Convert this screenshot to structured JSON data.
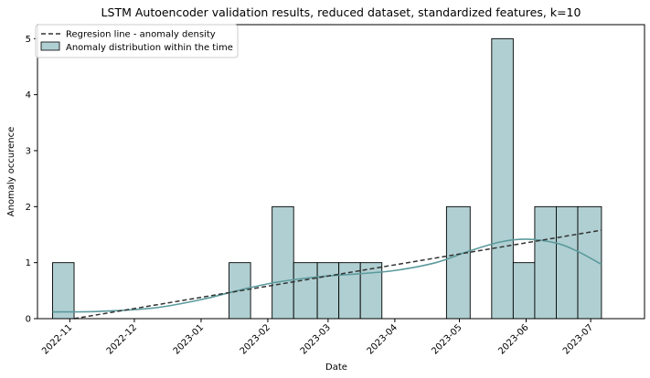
{
  "chart_data": {
    "type": "bar",
    "title": "LSTM Autoencoder validation results, reduced dataset, standardized features, k=10",
    "xlabel": "Date",
    "ylabel": "Anomaly occurence",
    "ylim": [
      0,
      5.25
    ],
    "yticks": [
      0,
      1,
      2,
      3,
      4,
      5
    ],
    "xlim": [
      "2022-10-17",
      "2023-07-26"
    ],
    "xticks": [
      "2022-11",
      "2022-12",
      "2023-01",
      "2023-02",
      "2023-03",
      "2023-04",
      "2023-05",
      "2023-06",
      "2023-07"
    ],
    "grid": false,
    "legend_position": "top-left",
    "legend": [
      "Regresion line - anomaly density",
      "Anomaly distribution within the time"
    ],
    "colors": {
      "bar_fill": "#b0cfd2",
      "bar_edge": "#000000",
      "kde_line": "#5b9a9c",
      "regression_line": "#333333"
    },
    "bins": [
      {
        "start": "2022-10-24",
        "end": "2022-11-03",
        "count": 1
      },
      {
        "start": "2022-11-03",
        "end": "2022-11-13",
        "count": 0
      },
      {
        "start": "2022-11-13",
        "end": "2022-11-24",
        "count": 0
      },
      {
        "start": "2022-11-24",
        "end": "2022-12-04",
        "count": 0
      },
      {
        "start": "2022-12-04",
        "end": "2022-12-14",
        "count": 0
      },
      {
        "start": "2022-12-14",
        "end": "2022-12-24",
        "count": 0
      },
      {
        "start": "2022-12-24",
        "end": "2023-01-04",
        "count": 0
      },
      {
        "start": "2023-01-04",
        "end": "2023-01-14",
        "count": 0
      },
      {
        "start": "2023-01-14",
        "end": "2023-01-24",
        "count": 1
      },
      {
        "start": "2023-01-24",
        "end": "2023-02-03",
        "count": 0
      },
      {
        "start": "2023-02-03",
        "end": "2023-02-13",
        "count": 2
      },
      {
        "start": "2023-02-13",
        "end": "2023-02-24",
        "count": 1
      },
      {
        "start": "2023-02-24",
        "end": "2023-03-06",
        "count": 1
      },
      {
        "start": "2023-03-06",
        "end": "2023-03-16",
        "count": 1
      },
      {
        "start": "2023-03-16",
        "end": "2023-03-26",
        "count": 1
      },
      {
        "start": "2023-03-26",
        "end": "2023-04-05",
        "count": 0
      },
      {
        "start": "2023-04-05",
        "end": "2023-04-15",
        "count": 0
      },
      {
        "start": "2023-04-15",
        "end": "2023-04-25",
        "count": 0
      },
      {
        "start": "2023-04-25",
        "end": "2023-05-06",
        "count": 2
      },
      {
        "start": "2023-05-06",
        "end": "2023-05-16",
        "count": 0
      },
      {
        "start": "2023-05-16",
        "end": "2023-05-26",
        "count": 5
      },
      {
        "start": "2023-05-26",
        "end": "2023-06-05",
        "count": 1
      },
      {
        "start": "2023-06-05",
        "end": "2023-06-15",
        "count": 2
      },
      {
        "start": "2023-06-15",
        "end": "2023-06-25",
        "count": 2
      },
      {
        "start": "2023-06-25",
        "end": "2023-07-06",
        "count": 2
      }
    ],
    "series": [
      {
        "name": "Regresion line - anomaly density",
        "x": [
          "2022-11-03",
          "2023-07-06"
        ],
        "y": [
          0,
          1.58
        ]
      },
      {
        "x": [
          "2022-10-24",
          "2022-11-15",
          "2022-12-10",
          "2023-01-01",
          "2023-01-20",
          "2023-02-05",
          "2023-02-25",
          "2023-03-15",
          "2023-04-01",
          "2023-04-20",
          "2023-05-05",
          "2023-05-20",
          "2023-06-01",
          "2023-06-15",
          "2023-06-25",
          "2023-07-06"
        ],
        "y": [
          0.12,
          0.13,
          0.19,
          0.34,
          0.52,
          0.65,
          0.75,
          0.8,
          0.86,
          1.0,
          1.2,
          1.37,
          1.42,
          1.35,
          1.2,
          0.97
        ]
      }
    ]
  }
}
